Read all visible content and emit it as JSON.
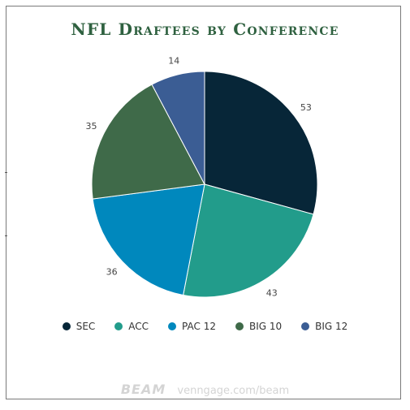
{
  "chart_data": {
    "type": "pie",
    "title": "NFL Draftees by Conference",
    "categories": [
      "SEC",
      "ACC",
      "PAC 12",
      "BIG 10",
      "BIG 12"
    ],
    "values": [
      53,
      43,
      36,
      35,
      14
    ],
    "colors": [
      "#072638",
      "#229c8b",
      "#0088bd",
      "#3f6a49",
      "#3b5d94"
    ],
    "legend_position": "bottom"
  },
  "watermark": {
    "brand": "BEAM",
    "url": "venngage.com/beam"
  }
}
